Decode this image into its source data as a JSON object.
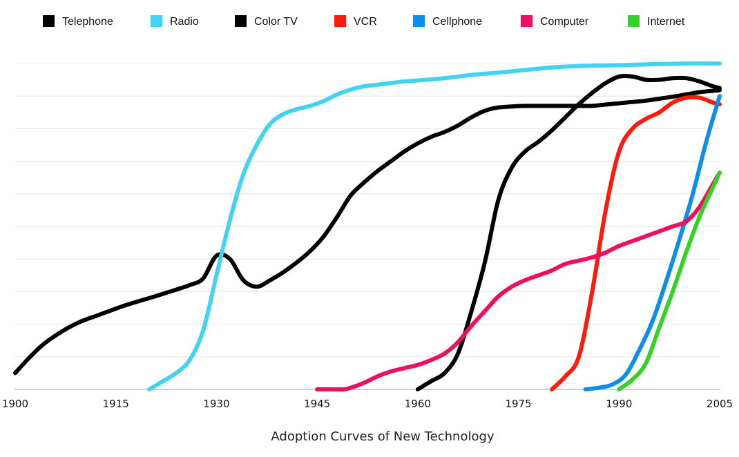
{
  "chart_data": {
    "type": "line",
    "title": "Adoption Curves of New Technology",
    "xlabel": "",
    "ylabel": "",
    "xlim": [
      1900,
      2005
    ],
    "ylim": [
      0,
      100
    ],
    "xticks": [
      "1900",
      "1915",
      "1930",
      "1945",
      "1960",
      "1975",
      "1990",
      "2005"
    ],
    "grid": true,
    "legend_position": "top",
    "series": [
      {
        "name": "Telephone",
        "color": "#000000",
        "x": [
          1900,
          1902,
          1904,
          1906,
          1908,
          1910,
          1912,
          1914,
          1916,
          1918,
          1920,
          1922,
          1924,
          1926,
          1928,
          1930,
          1932,
          1934,
          1936,
          1938,
          1940,
          1942,
          1944,
          1946,
          1948,
          1950,
          1952,
          1954,
          1956,
          1958,
          1960,
          1962,
          1964,
          1966,
          1968,
          1970,
          1972,
          1974,
          1976,
          1978,
          1980,
          1982,
          1984,
          1986,
          1988,
          1990,
          1992,
          1994,
          1996,
          1998,
          2000,
          2002,
          2004,
          2005
        ],
        "y": [
          5,
          9.5,
          13.5,
          16.5,
          19,
          21,
          22.5,
          24,
          25.5,
          26.8,
          28,
          29.3,
          30.6,
          32,
          34,
          41,
          40,
          33.5,
          31.5,
          33.5,
          36,
          39,
          42.5,
          47,
          53,
          59.5,
          63.5,
          67,
          70,
          73,
          75.5,
          77.5,
          79,
          81,
          83.5,
          85.5,
          86.5,
          86.8,
          87,
          87,
          87,
          87,
          87,
          87,
          87.4,
          87.8,
          88.2,
          88.6,
          89.2,
          89.8,
          90.5,
          91.2,
          91.6,
          91.8
        ]
      },
      {
        "name": "Radio",
        "color": "#41d3f1",
        "x": [
          1920,
          1922,
          1924,
          1926,
          1928,
          1930,
          1932,
          1934,
          1936,
          1938,
          1940,
          1942,
          1944,
          1946,
          1948,
          1950,
          1952,
          1954,
          1956,
          1958,
          1960,
          1964,
          1968,
          1972,
          1976,
          1980,
          1984,
          1990,
          2000,
          2005
        ],
        "y": [
          0,
          2.5,
          5,
          9,
          18,
          35,
          52,
          66,
          75,
          81.5,
          84.5,
          86,
          87,
          88.5,
          90.5,
          92,
          93,
          93.5,
          94,
          94.5,
          94.8,
          95.5,
          96.5,
          97.2,
          98,
          98.8,
          99.2,
          99.5,
          100,
          100
        ]
      },
      {
        "name": "Color TV",
        "color": "#000000",
        "x": [
          1960,
          1962,
          1964,
          1966,
          1968,
          1970,
          1972,
          1974,
          1976,
          1978,
          1980,
          1982,
          1984,
          1986,
          1988,
          1990,
          1992,
          1994,
          1996,
          1998,
          2000,
          2002,
          2004,
          2005
        ],
        "y": [
          0,
          2.5,
          5,
          11,
          24,
          39,
          58,
          68,
          73,
          76,
          79.5,
          83.5,
          87.5,
          91,
          94,
          96,
          96,
          95,
          95,
          95.5,
          95.5,
          94.5,
          93,
          92.5
        ]
      },
      {
        "name": "VCR",
        "color": "#ff1a0c",
        "x": [
          1980,
          1982,
          1984,
          1986,
          1988,
          1990,
          1992,
          1994,
          1996,
          1998,
          2000,
          2002,
          2004,
          2005
        ],
        "y": [
          0,
          4,
          10,
          30,
          55,
          73,
          80,
          83,
          85,
          88,
          89.5,
          89.5,
          88,
          87.5
        ]
      },
      {
        "name": "Cellphone",
        "color": "#0e8ee8",
        "x": [
          1985,
          1987,
          1989,
          1991,
          1993,
          1995,
          1997,
          1999,
          2001,
          2003,
          2005
        ],
        "y": [
          0,
          0.5,
          1.5,
          4.5,
          12,
          21,
          33,
          46,
          60,
          76,
          90
        ]
      },
      {
        "name": "Computer",
        "color": "#ee1060",
        "x": [
          1945,
          1947,
          1949,
          1950,
          1952,
          1954,
          1956,
          1958,
          1960,
          1962,
          1964,
          1966,
          1968,
          1970,
          1972,
          1974,
          1976,
          1978,
          1980,
          1982,
          1984,
          1986,
          1988,
          1990,
          1992,
          1994,
          1996,
          1998,
          2000,
          2002,
          2004,
          2005
        ],
        "y": [
          0,
          0,
          0,
          0.5,
          2,
          4,
          5.5,
          6.5,
          7.5,
          9,
          11,
          14.5,
          19.5,
          24,
          28.5,
          31.5,
          33.5,
          35,
          36.5,
          38.5,
          39.5,
          40.5,
          42,
          44,
          45.5,
          47,
          48.5,
          50,
          51.5,
          56,
          63,
          66.5
        ]
      },
      {
        "name": "Internet",
        "color": "#33d326",
        "x": [
          1990,
          1992,
          1994,
          1996,
          1998,
          2000,
          2002,
          2004,
          2005
        ],
        "y": [
          0,
          3,
          8,
          19,
          30,
          42,
          53,
          62,
          66.5
        ]
      }
    ]
  }
}
